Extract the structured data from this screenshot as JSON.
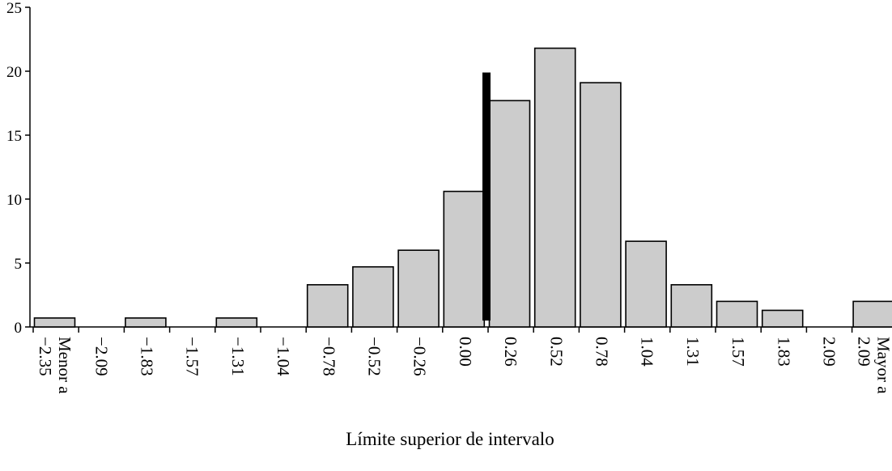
{
  "chart_data": {
    "type": "bar",
    "title": "",
    "xlabel": "Límite superior de intervalo",
    "ylabel": "",
    "ylim": [
      0,
      25
    ],
    "yticks": [
      0,
      5,
      10,
      15,
      20,
      25
    ],
    "grid": false,
    "bar_color": "#cccccc",
    "marker_color": "#000000",
    "categories": [
      "Menor a −2.35",
      "−2.09",
      "−1.83",
      "−1.57",
      "−1.31",
      "−1.04",
      "−0.78",
      "−0.52",
      "−0.26",
      "0.00",
      "0.26",
      "0.52",
      "0.78",
      "1.04",
      "1.31",
      "1.57",
      "1.83",
      "2.09",
      "Mayor a 2.09"
    ],
    "values": [
      0.7,
      0,
      0.7,
      0,
      0.7,
      0,
      3.3,
      4.7,
      6.0,
      10.6,
      17.7,
      21.8,
      19.1,
      6.7,
      3.3,
      2.0,
      1.3,
      0,
      2.0
    ],
    "reference_line": {
      "between_categories": [
        "0.00",
        "0.26"
      ],
      "position": 0.18,
      "from": 0.5,
      "to": 19.9
    }
  }
}
